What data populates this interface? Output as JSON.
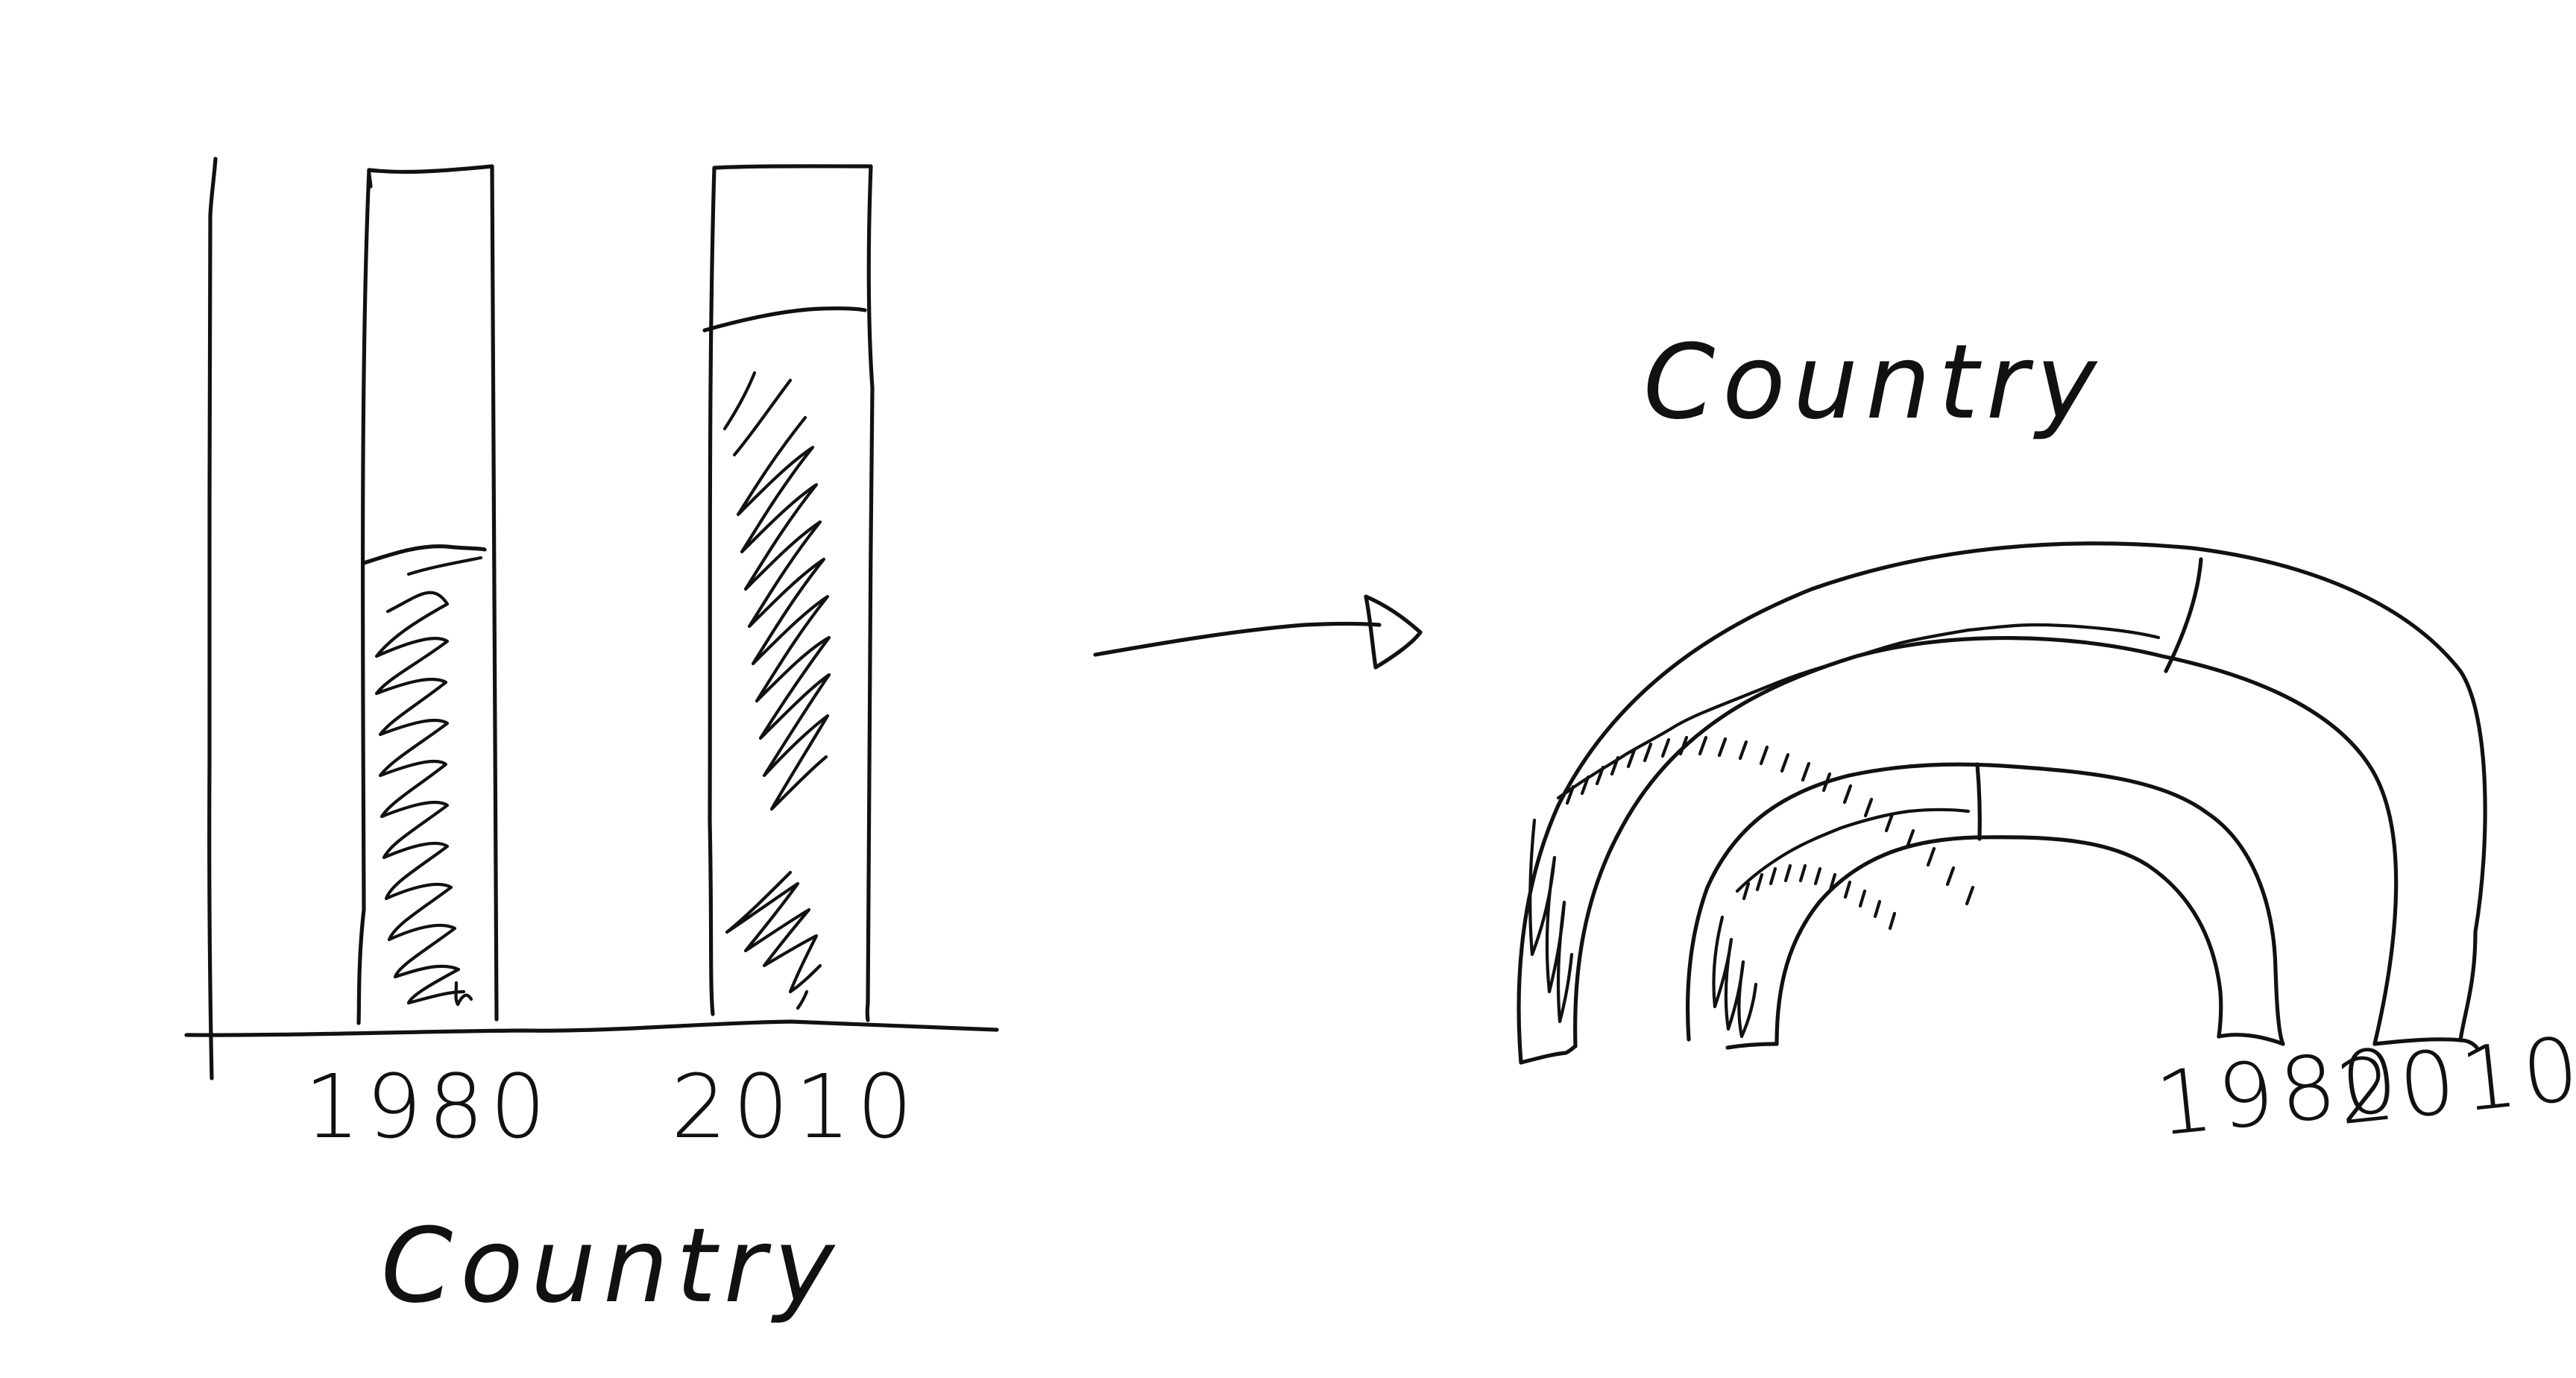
{
  "left_chart": {
    "title": "Country",
    "categories": [
      "1980",
      "2010"
    ],
    "values": [
      0.55,
      0.86
    ]
  },
  "right_chart": {
    "title": "Country",
    "categories": [
      "1980",
      "2010"
    ],
    "values": [
      0.55,
      0.86
    ]
  },
  "arrow": {
    "meaning": "transforms-into"
  },
  "colors": {
    "ink": "#111111",
    "paper": "#ffffff"
  },
  "chart_data": [
    {
      "type": "bar",
      "title": "Country",
      "categories": [
        "1980",
        "2010"
      ],
      "values": [
        0.55,
        0.86
      ],
      "ylim": [
        0,
        1
      ],
      "xlabel": "",
      "ylabel": "",
      "grid": false
    },
    {
      "type": "radial-bar",
      "title": "Country",
      "categories": [
        "1980",
        "2010"
      ],
      "values": [
        0.55,
        0.86
      ],
      "range": [
        0,
        1
      ],
      "grid": false
    }
  ]
}
